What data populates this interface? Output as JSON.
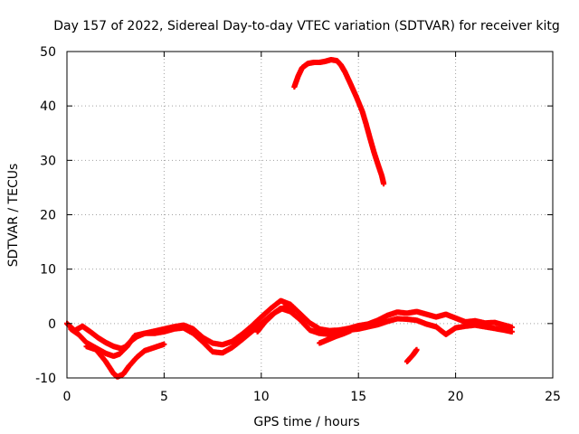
{
  "chart_data": {
    "type": "scatter",
    "title": "Day 157 of 2022, Sidereal Day-to-day VTEC variation (SDTVAR) for receiver kitg",
    "xlabel": "GPS time / hours",
    "ylabel": "SDTVAR / TECUs",
    "xlim": [
      0,
      25
    ],
    "ylim": [
      -10,
      50
    ],
    "xticks": [
      0,
      5,
      10,
      15,
      20,
      25
    ],
    "yticks": [
      -10,
      0,
      10,
      20,
      30,
      40,
      50
    ],
    "grid": true,
    "marker_color": "#ff0000",
    "series": [
      {
        "name": "low-band-upper",
        "points": [
          [
            0.0,
            0.0
          ],
          [
            0.4,
            -1.3
          ],
          [
            0.8,
            -0.5
          ],
          [
            1.2,
            -1.5
          ],
          [
            1.6,
            -2.6
          ],
          [
            2.0,
            -3.5
          ],
          [
            2.4,
            -4.2
          ],
          [
            2.8,
            -4.6
          ],
          [
            3.0,
            -4.3
          ],
          [
            3.3,
            -3.2
          ],
          [
            3.6,
            -2.4
          ],
          [
            4.0,
            -1.8
          ],
          [
            4.5,
            -1.4
          ],
          [
            5.0,
            -1.0
          ],
          [
            5.5,
            -0.6
          ],
          [
            6.0,
            -0.3
          ],
          [
            6.5,
            -1.0
          ],
          [
            7.0,
            -2.6
          ],
          [
            7.5,
            -3.6
          ],
          [
            8.0,
            -3.9
          ],
          [
            8.5,
            -3.3
          ],
          [
            9.0,
            -2.0
          ],
          [
            9.5,
            -0.5
          ],
          [
            10.0,
            1.2
          ],
          [
            10.5,
            2.8
          ],
          [
            11.0,
            4.2
          ],
          [
            11.5,
            3.5
          ],
          [
            12.0,
            1.8
          ],
          [
            12.5,
            0.1
          ],
          [
            13.0,
            -1.0
          ],
          [
            13.5,
            -1.3
          ],
          [
            14.0,
            -1.2
          ],
          [
            14.5,
            -0.9
          ],
          [
            15.0,
            -0.4
          ],
          [
            15.5,
            -0.1
          ],
          [
            16.0,
            0.6
          ],
          [
            16.5,
            1.5
          ],
          [
            17.0,
            2.1
          ],
          [
            17.5,
            1.9
          ],
          [
            18.0,
            2.2
          ],
          [
            18.5,
            1.7
          ],
          [
            19.0,
            1.2
          ],
          [
            19.5,
            1.7
          ],
          [
            20.0,
            1.0
          ],
          [
            20.5,
            0.3
          ],
          [
            21.0,
            0.5
          ],
          [
            21.5,
            0.1
          ],
          [
            22.0,
            0.2
          ],
          [
            22.5,
            -0.3
          ],
          [
            22.9,
            -0.7
          ]
        ]
      },
      {
        "name": "low-band-lower",
        "points": [
          [
            0.2,
            -1.0
          ],
          [
            0.6,
            -2.0
          ],
          [
            1.0,
            -3.5
          ],
          [
            1.5,
            -4.5
          ],
          [
            2.0,
            -5.5
          ],
          [
            2.4,
            -6.0
          ],
          [
            2.7,
            -5.6
          ],
          [
            3.1,
            -4.2
          ],
          [
            3.5,
            -2.2
          ],
          [
            4.0,
            -1.8
          ],
          [
            4.5,
            -1.8
          ],
          [
            5.0,
            -1.5
          ],
          [
            5.5,
            -1.0
          ],
          [
            6.0,
            -0.8
          ],
          [
            6.5,
            -1.8
          ],
          [
            7.0,
            -3.4
          ],
          [
            7.5,
            -5.2
          ],
          [
            8.0,
            -5.4
          ],
          [
            8.5,
            -4.4
          ],
          [
            9.0,
            -3.0
          ],
          [
            9.5,
            -1.5
          ],
          [
            10.0,
            0.0
          ],
          [
            10.5,
            1.5
          ],
          [
            11.0,
            2.8
          ],
          [
            11.5,
            2.2
          ],
          [
            12.0,
            0.7
          ],
          [
            12.5,
            -1.2
          ],
          [
            13.0,
            -1.8
          ],
          [
            13.5,
            -2.0
          ],
          [
            14.0,
            -1.8
          ],
          [
            14.5,
            -1.2
          ],
          [
            15.0,
            -1.0
          ],
          [
            15.5,
            -0.6
          ],
          [
            16.0,
            -0.2
          ],
          [
            16.5,
            0.4
          ],
          [
            17.0,
            0.9
          ],
          [
            17.5,
            0.8
          ],
          [
            18.0,
            0.6
          ],
          [
            18.5,
            -0.1
          ],
          [
            19.0,
            -0.6
          ],
          [
            19.5,
            -2.0
          ],
          [
            20.0,
            -0.8
          ],
          [
            20.5,
            -0.5
          ],
          [
            21.0,
            -0.3
          ],
          [
            21.5,
            -0.6
          ],
          [
            22.0,
            -0.9
          ],
          [
            22.5,
            -1.2
          ],
          [
            22.9,
            -1.5
          ]
        ]
      },
      {
        "name": "dip-branch",
        "points": [
          [
            1.0,
            -4.2
          ],
          [
            1.5,
            -4.8
          ],
          [
            2.0,
            -7.0
          ],
          [
            2.4,
            -9.2
          ],
          [
            2.6,
            -9.8
          ],
          [
            2.9,
            -9.3
          ],
          [
            3.2,
            -7.8
          ],
          [
            3.6,
            -6.2
          ],
          [
            4.0,
            -5.0
          ],
          [
            4.5,
            -4.4
          ],
          [
            5.0,
            -3.8
          ]
        ]
      },
      {
        "name": "mid-branch",
        "points": [
          [
            9.8,
            -1.5
          ],
          [
            10.2,
            0.3
          ],
          [
            10.7,
            2.0
          ],
          [
            11.2,
            3.0
          ],
          [
            11.6,
            2.2
          ]
        ]
      },
      {
        "name": "mid-lower-branch",
        "points": [
          [
            13.0,
            -3.6
          ],
          [
            13.4,
            -3.0
          ],
          [
            13.8,
            -2.4
          ],
          [
            14.2,
            -1.9
          ],
          [
            14.6,
            -1.3
          ]
        ]
      },
      {
        "name": "late-branch",
        "points": [
          [
            17.5,
            -7.0
          ],
          [
            17.8,
            -5.8
          ],
          [
            18.0,
            -4.8
          ]
        ]
      },
      {
        "name": "high-arc",
        "points": [
          [
            11.7,
            43.5
          ],
          [
            11.9,
            45.5
          ],
          [
            12.1,
            47.0
          ],
          [
            12.4,
            47.8
          ],
          [
            12.7,
            48.0
          ],
          [
            13.0,
            48.0
          ],
          [
            13.3,
            48.2
          ],
          [
            13.6,
            48.5
          ],
          [
            13.9,
            48.3
          ],
          [
            14.1,
            47.5
          ],
          [
            14.3,
            46.3
          ],
          [
            14.6,
            44.0
          ],
          [
            14.9,
            41.6
          ],
          [
            15.2,
            39.0
          ],
          [
            15.4,
            36.6
          ],
          [
            15.6,
            34.0
          ],
          [
            15.8,
            31.5
          ],
          [
            16.0,
            29.3
          ],
          [
            16.2,
            27.2
          ],
          [
            16.3,
            25.7
          ]
        ]
      }
    ]
  }
}
